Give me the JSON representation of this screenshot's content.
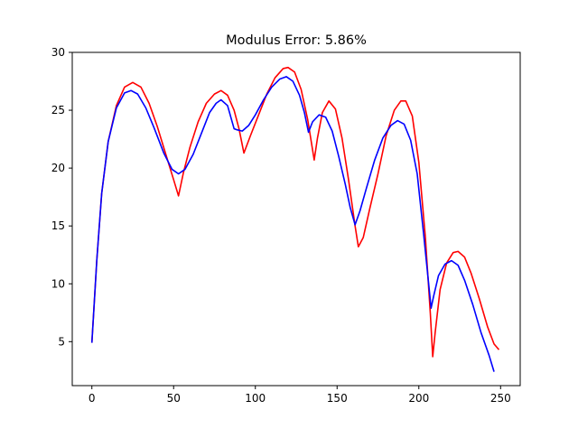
{
  "chart_data": {
    "type": "line",
    "title": "Modulus Error: 5.86%",
    "xlabel": "",
    "ylabel": "",
    "xlim": [
      -12,
      262
    ],
    "ylim": [
      1.2,
      30
    ],
    "xticks": [
      0,
      50,
      100,
      150,
      200,
      250
    ],
    "yticks": [
      5,
      10,
      15,
      20,
      25,
      30
    ],
    "grid": false,
    "legend": "none",
    "series": [
      {
        "color": "#ff0000",
        "points": [
          [
            0,
            4.9
          ],
          [
            3,
            12
          ],
          [
            6,
            17.8
          ],
          [
            10,
            22.3
          ],
          [
            15,
            25.4
          ],
          [
            20,
            27
          ],
          [
            25,
            27.4
          ],
          [
            30,
            27
          ],
          [
            35,
            25.6
          ],
          [
            40,
            23.6
          ],
          [
            45,
            21.3
          ],
          [
            50,
            19
          ],
          [
            53,
            17.6
          ],
          [
            56,
            19.6
          ],
          [
            60,
            21.8
          ],
          [
            65,
            24
          ],
          [
            70,
            25.6
          ],
          [
            75,
            26.4
          ],
          [
            79,
            26.7
          ],
          [
            83,
            26.3
          ],
          [
            87,
            25
          ],
          [
            90,
            23.4
          ],
          [
            93,
            21.3
          ],
          [
            97,
            22.8
          ],
          [
            102,
            24.6
          ],
          [
            107,
            26.4
          ],
          [
            112,
            27.8
          ],
          [
            117,
            28.6
          ],
          [
            120,
            28.7
          ],
          [
            124,
            28.3
          ],
          [
            128,
            26.8
          ],
          [
            132,
            24.2
          ],
          [
            136,
            20.7
          ],
          [
            138,
            22.6
          ],
          [
            141,
            24.8
          ],
          [
            145,
            25.8
          ],
          [
            149,
            25.1
          ],
          [
            153,
            22.6
          ],
          [
            157,
            19
          ],
          [
            161,
            15
          ],
          [
            163,
            13.2
          ],
          [
            166,
            14
          ],
          [
            170,
            16.5
          ],
          [
            175,
            19.5
          ],
          [
            180,
            22.8
          ],
          [
            185,
            25
          ],
          [
            189,
            25.8
          ],
          [
            192,
            25.8
          ],
          [
            196,
            24.5
          ],
          [
            200,
            20.5
          ],
          [
            204,
            14
          ],
          [
            207,
            7.5
          ],
          [
            208.5,
            3.7
          ],
          [
            210,
            5.8
          ],
          [
            213,
            9.5
          ],
          [
            217,
            11.8
          ],
          [
            221,
            12.7
          ],
          [
            224,
            12.8
          ],
          [
            228,
            12.3
          ],
          [
            232,
            10.9
          ],
          [
            237,
            8.7
          ],
          [
            242,
            6.3
          ],
          [
            246,
            4.8
          ],
          [
            249,
            4.3
          ]
        ]
      },
      {
        "color": "#0000ff",
        "points": [
          [
            0,
            4.9
          ],
          [
            3,
            12
          ],
          [
            6,
            17.8
          ],
          [
            10,
            22.3
          ],
          [
            15,
            25.2
          ],
          [
            20,
            26.5
          ],
          [
            24,
            26.7
          ],
          [
            28,
            26.4
          ],
          [
            33,
            25.2
          ],
          [
            38,
            23.5
          ],
          [
            44,
            21.3
          ],
          [
            49,
            19.9
          ],
          [
            53,
            19.5
          ],
          [
            57,
            19.9
          ],
          [
            62,
            21.2
          ],
          [
            67,
            23
          ],
          [
            72,
            24.8
          ],
          [
            76,
            25.6
          ],
          [
            79,
            25.9
          ],
          [
            83,
            25.4
          ],
          [
            87,
            23.4
          ],
          [
            89,
            23.3
          ],
          [
            92,
            23.2
          ],
          [
            96,
            23.7
          ],
          [
            100,
            24.6
          ],
          [
            105,
            25.9
          ],
          [
            110,
            27
          ],
          [
            115,
            27.7
          ],
          [
            119,
            27.9
          ],
          [
            123,
            27.5
          ],
          [
            127,
            26.3
          ],
          [
            130,
            24.8
          ],
          [
            132.5,
            23.1
          ],
          [
            135,
            24
          ],
          [
            139,
            24.6
          ],
          [
            143,
            24.4
          ],
          [
            147,
            23.2
          ],
          [
            151,
            21
          ],
          [
            155,
            18.6
          ],
          [
            158,
            16.6
          ],
          [
            161,
            15.1
          ],
          [
            164,
            16.3
          ],
          [
            168,
            18.3
          ],
          [
            173,
            20.7
          ],
          [
            178,
            22.6
          ],
          [
            183,
            23.7
          ],
          [
            187,
            24.1
          ],
          [
            191,
            23.8
          ],
          [
            195,
            22.4
          ],
          [
            199,
            19.5
          ],
          [
            203,
            14.2
          ],
          [
            206,
            10
          ],
          [
            207.5,
            7.9
          ],
          [
            209,
            8.9
          ],
          [
            212,
            10.7
          ],
          [
            216,
            11.7
          ],
          [
            220,
            12
          ],
          [
            224,
            11.6
          ],
          [
            228,
            10.3
          ],
          [
            233,
            8.2
          ],
          [
            238,
            5.8
          ],
          [
            243,
            3.8
          ],
          [
            246,
            2.4
          ]
        ]
      }
    ]
  }
}
